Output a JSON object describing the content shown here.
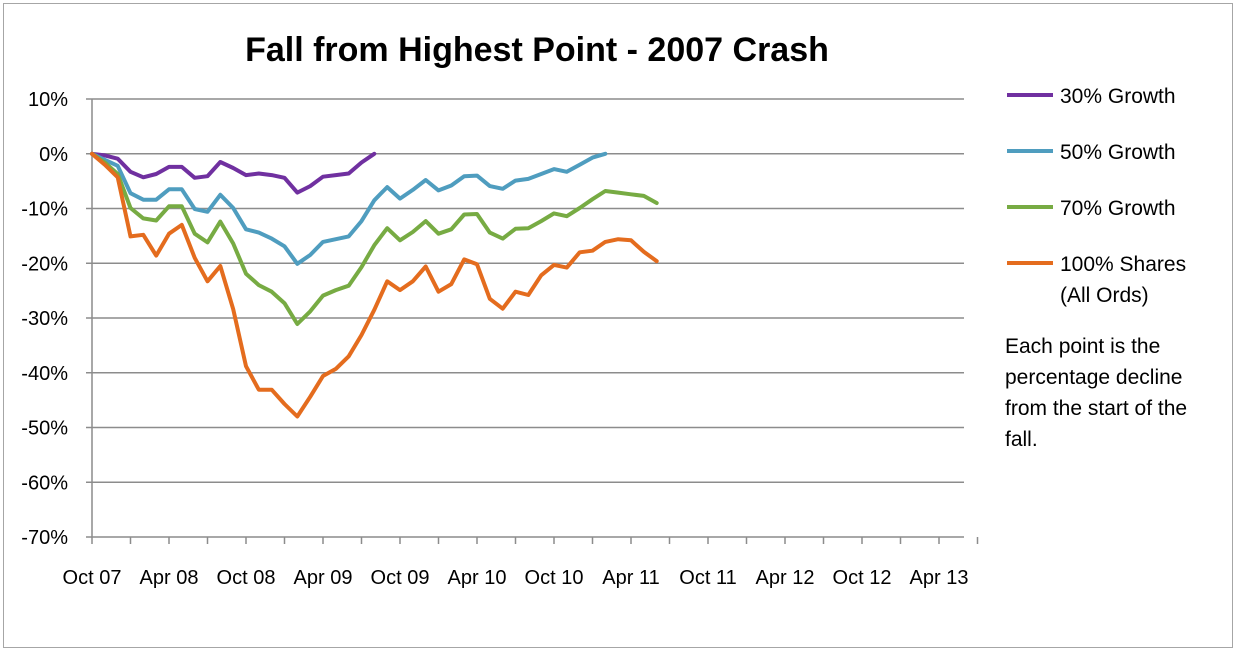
{
  "chart_data": {
    "type": "line",
    "title": "Fall from Highest Point - 2007 Crash",
    "xlabel": "",
    "ylabel": "",
    "ylim": [
      -70,
      10
    ],
    "y_ticks": [
      10,
      0,
      -10,
      -20,
      -30,
      -40,
      -50,
      -60,
      -70
    ],
    "y_tick_labels": [
      "10%",
      "0%",
      "-10%",
      "-20%",
      "-30%",
      "-40%",
      "-50%",
      "-60%",
      "-70%"
    ],
    "x_unit": "months since Oct 07",
    "xlim": [
      0,
      69
    ],
    "x_tick_positions": [
      0,
      6,
      12,
      18,
      24,
      30,
      36,
      42,
      48,
      54,
      60,
      66
    ],
    "x_tick_labels": [
      "Oct 07",
      "Apr 08",
      "Oct 08",
      "Apr 09",
      "Oct 09",
      "Apr 10",
      "Oct 10",
      "Apr 11",
      "Oct 11",
      "Apr 12",
      "Oct 12",
      "Apr 13"
    ],
    "grid": "horizontal",
    "legend_position": "right",
    "series": [
      {
        "name": "30% Growth",
        "color": "#7030a0",
        "values": [
          0,
          -0.3,
          -0.9,
          -3.3,
          -4.3,
          -3.7,
          -2.4,
          -2.4,
          -4.4,
          -4.1,
          -1.5,
          -2.6,
          -3.9,
          -3.6,
          -3.9,
          -4.4,
          -7.1,
          -5.9,
          -4.2,
          -3.9,
          -3.6,
          -1.6,
          0
        ]
      },
      {
        "name": "50% Growth",
        "color": "#4f9dbf",
        "values": [
          0,
          -1.1,
          -2.2,
          -7.2,
          -8.4,
          -8.4,
          -6.5,
          -6.5,
          -10.1,
          -10.6,
          -7.5,
          -9.9,
          -13.8,
          -14.4,
          -15.5,
          -16.9,
          -20.1,
          -18.5,
          -16.1,
          -15.6,
          -15.1,
          -12.3,
          -8.5,
          -6.1,
          -8.2,
          -6.6,
          -4.8,
          -6.7,
          -5.8,
          -4.1,
          -4.0,
          -5.9,
          -6.4,
          -4.9,
          -4.6,
          -3.7,
          -2.8,
          -3.3,
          -2.0,
          -0.7,
          0
        ]
      },
      {
        "name": "70% Growth",
        "color": "#77ab43",
        "values": [
          0,
          -1.6,
          -3.7,
          -9.9,
          -11.8,
          -12.2,
          -9.6,
          -9.6,
          -14.6,
          -16.2,
          -12.4,
          -16.4,
          -21.9,
          -24.0,
          -25.2,
          -27.3,
          -31.1,
          -28.8,
          -25.9,
          -24.9,
          -24.1,
          -20.7,
          -16.7,
          -13.6,
          -15.8,
          -14.3,
          -12.3,
          -14.6,
          -13.8,
          -11.1,
          -11.0,
          -14.4,
          -15.5,
          -13.7,
          -13.6,
          -12.3,
          -10.9,
          -11.4,
          -9.9,
          -8.3,
          -6.8,
          -7.1,
          -7.4,
          -7.7,
          -9.0
        ]
      },
      {
        "name": "100% Shares\n(All Ords)",
        "color": "#e46c1e",
        "values": [
          0,
          -2.0,
          -4.3,
          -15.1,
          -14.8,
          -18.6,
          -14.6,
          -13.0,
          -19.0,
          -23.3,
          -20.5,
          -28.4,
          -38.8,
          -43.1,
          -43.1,
          -45.7,
          -48.0,
          -44.4,
          -40.6,
          -39.3,
          -37.0,
          -33.1,
          -28.5,
          -23.3,
          -24.9,
          -23.3,
          -20.6,
          -25.2,
          -23.8,
          -19.3,
          -20.2,
          -26.5,
          -28.3,
          -25.2,
          -25.8,
          -22.2,
          -20.3,
          -20.8,
          -18.0,
          -17.7,
          -16.1,
          -15.6,
          -15.8,
          -17.9,
          -19.6
        ]
      }
    ],
    "annotation": "Each point is the percentage decline from the start of the fall."
  }
}
